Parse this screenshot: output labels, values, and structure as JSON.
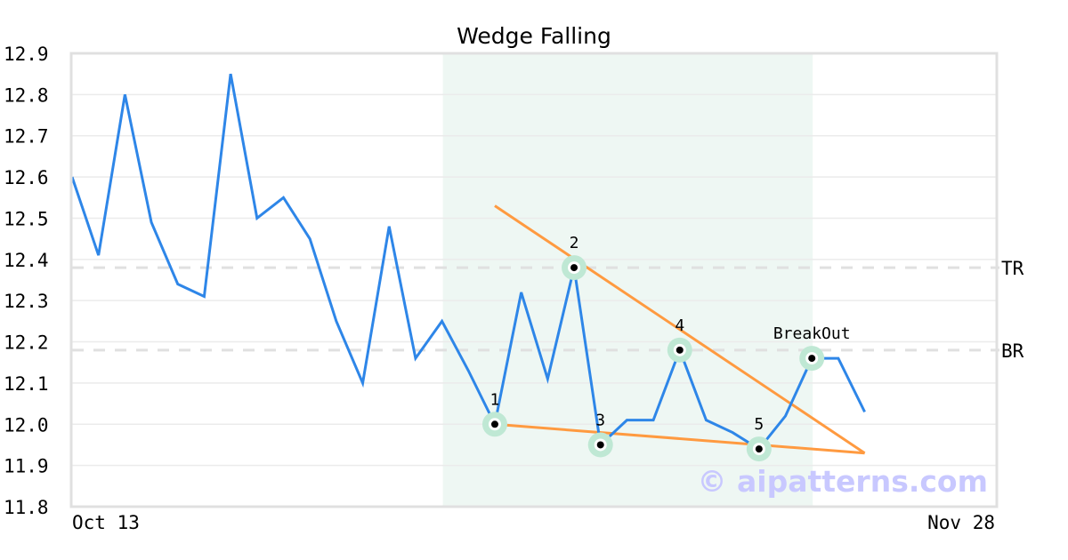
{
  "chart_data": {
    "type": "line",
    "title": "Wedge Falling",
    "xlabel": "",
    "ylabel": "",
    "x_tick_labels": [
      "Oct 13",
      "Nov 28"
    ],
    "x_range_points": 36,
    "ylim": [
      11.8,
      12.9
    ],
    "y_ticks": [
      "12.9",
      "12.8",
      "12.7",
      "12.6",
      "12.5",
      "12.4",
      "12.3",
      "12.2",
      "12.1",
      "12.0",
      "11.9",
      "11.8"
    ],
    "grid": true,
    "series": [
      {
        "values": [
          12.6,
          12.41,
          12.8,
          12.49,
          12.34,
          12.31,
          12.85,
          12.5,
          12.55,
          12.45,
          12.25,
          12.1,
          12.48,
          12.16,
          12.25,
          12.13,
          12.0,
          12.32,
          12.11,
          12.38,
          11.95,
          12.01,
          12.01,
          12.18,
          12.01,
          11.98,
          11.94,
          12.02,
          12.16,
          12.16,
          12.03
        ],
        "color": "#2e86e8"
      }
    ],
    "pattern_region": {
      "start_index": 14,
      "end_index": 28,
      "color": "#eef7f3"
    },
    "trend_lines": [
      {
        "from": [
          16,
          12.53
        ],
        "to": [
          30,
          11.93
        ],
        "color": "#ff9a40"
      },
      {
        "from": [
          16,
          12.0
        ],
        "to": [
          30,
          11.93
        ],
        "color": "#ff9a40"
      }
    ],
    "reference_lines": [
      {
        "label": "TR",
        "value": 12.38
      },
      {
        "label": "BR",
        "value": 12.18
      }
    ],
    "markers": [
      {
        "label": "1",
        "index": 16,
        "value": 12.0
      },
      {
        "label": "2",
        "index": 19,
        "value": 12.38
      },
      {
        "label": "3",
        "index": 20,
        "value": 11.95
      },
      {
        "label": "4",
        "index": 23,
        "value": 12.18
      },
      {
        "label": "5",
        "index": 26,
        "value": 11.94
      },
      {
        "label": "BreakOut",
        "index": 28,
        "value": 12.16
      }
    ],
    "watermark": "© aipatterns.com"
  }
}
